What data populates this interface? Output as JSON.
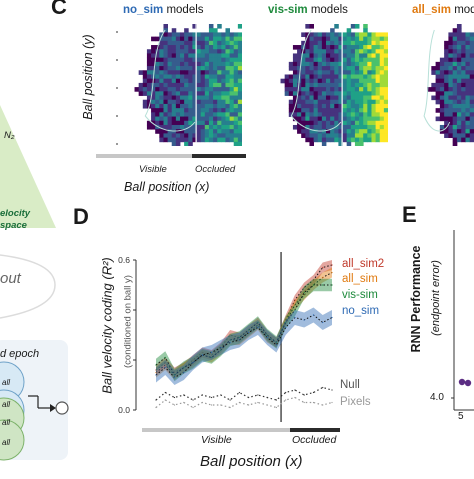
{
  "panel_c": {
    "letter": "C",
    "titles": [
      {
        "model": "no_sim",
        "suffix": " models",
        "color": "#2e6ab4"
      },
      {
        "model": "vis-sim",
        "suffix": " models",
        "color": "#1e8a3c"
      },
      {
        "model": "all_sim",
        "suffix": " models",
        "color": "#e07a10"
      }
    ],
    "ylabel": "Ball position (y)",
    "xlabel": "Ball position (x)",
    "visible_label": "Visible",
    "occluded_label": "Occluded"
  },
  "panel_d": {
    "letter": "D",
    "ylabel": "Ball velocity coding (R²)",
    "ysublabel": "(conditioned on ball y)",
    "xlabel": "Ball position (x)",
    "visible_label": "Visible",
    "occluded_label": "Occluded",
    "colors": {
      "all_sim2": "#c0392b",
      "all_sim": "#e07a10",
      "vis_sim": "#1e8a3c",
      "no_sim": "#2e6ab4",
      "null": "#333333",
      "pixels": "#999999"
    }
  },
  "panel_e": {
    "letter": "E",
    "ylabel": "RNN Performance",
    "ysublabel": "(endpoint error)",
    "ytick": "4.0",
    "xtick": "5"
  },
  "left_column": {
    "n2_label": "N₂",
    "velocity_label_1": "elocity",
    "velocity_label_2": "space",
    "out_label": "out",
    "epoch_label": "d epoch",
    "node_label_1": "all",
    "node_label_2": "all",
    "node_label_3": "all",
    "node_label_4": "all"
  },
  "chart_data": {
    "type": "line",
    "title": "",
    "xlabel": "Ball position (x)",
    "ylabel": "Ball velocity coding (R²)",
    "ylim": [
      0.0,
      0.6
    ],
    "yticks": [
      "0.0",
      "0.2",
      "0.4",
      "0.6"
    ],
    "x": [
      0,
      1,
      2,
      3,
      4,
      5,
      6,
      7,
      8,
      9,
      10,
      11,
      12,
      13,
      14,
      15,
      16,
      17,
      18,
      19
    ],
    "series": [
      {
        "name": "all_sim2",
        "values": [
          0.16,
          0.19,
          0.15,
          0.17,
          0.2,
          0.23,
          0.22,
          0.25,
          0.3,
          0.29,
          0.32,
          0.35,
          0.3,
          0.27,
          0.36,
          0.44,
          0.49,
          0.52,
          0.57,
          0.58
        ]
      },
      {
        "name": "all_sim",
        "values": [
          0.15,
          0.18,
          0.14,
          0.17,
          0.19,
          0.22,
          0.21,
          0.24,
          0.28,
          0.28,
          0.31,
          0.34,
          0.29,
          0.27,
          0.35,
          0.42,
          0.46,
          0.5,
          0.53,
          0.55
        ]
      },
      {
        "name": "vis-sim",
        "values": [
          0.18,
          0.21,
          0.14,
          0.17,
          0.19,
          0.22,
          0.21,
          0.24,
          0.28,
          0.29,
          0.32,
          0.35,
          0.3,
          0.27,
          0.35,
          0.4,
          0.47,
          0.5,
          0.5,
          0.5
        ]
      },
      {
        "name": "no_sim",
        "values": [
          0.14,
          0.17,
          0.13,
          0.15,
          0.19,
          0.22,
          0.23,
          0.25,
          0.27,
          0.28,
          0.31,
          0.33,
          0.29,
          0.26,
          0.33,
          0.37,
          0.36,
          0.38,
          0.35,
          0.37
        ]
      },
      {
        "name": "Null",
        "values": [
          0.04,
          0.07,
          0.05,
          0.06,
          0.04,
          0.06,
          0.05,
          0.06,
          0.04,
          0.07,
          0.05,
          0.06,
          0.05,
          0.04,
          0.07,
          0.08,
          0.06,
          0.07,
          0.09,
          0.08
        ]
      },
      {
        "name": "Pixels",
        "values": [
          0.01,
          0.04,
          0.02,
          0.03,
          0.01,
          0.03,
          0.02,
          0.02,
          0.01,
          0.03,
          0.02,
          0.03,
          0.02,
          0.01,
          0.04,
          0.05,
          0.03,
          0.03,
          0.02,
          0.03
        ]
      }
    ],
    "legend": [
      "all_sim2",
      "all_sim",
      "vis-sim",
      "no_sim",
      "Null",
      "Pixels"
    ],
    "legend_position": "right",
    "grid": false
  }
}
